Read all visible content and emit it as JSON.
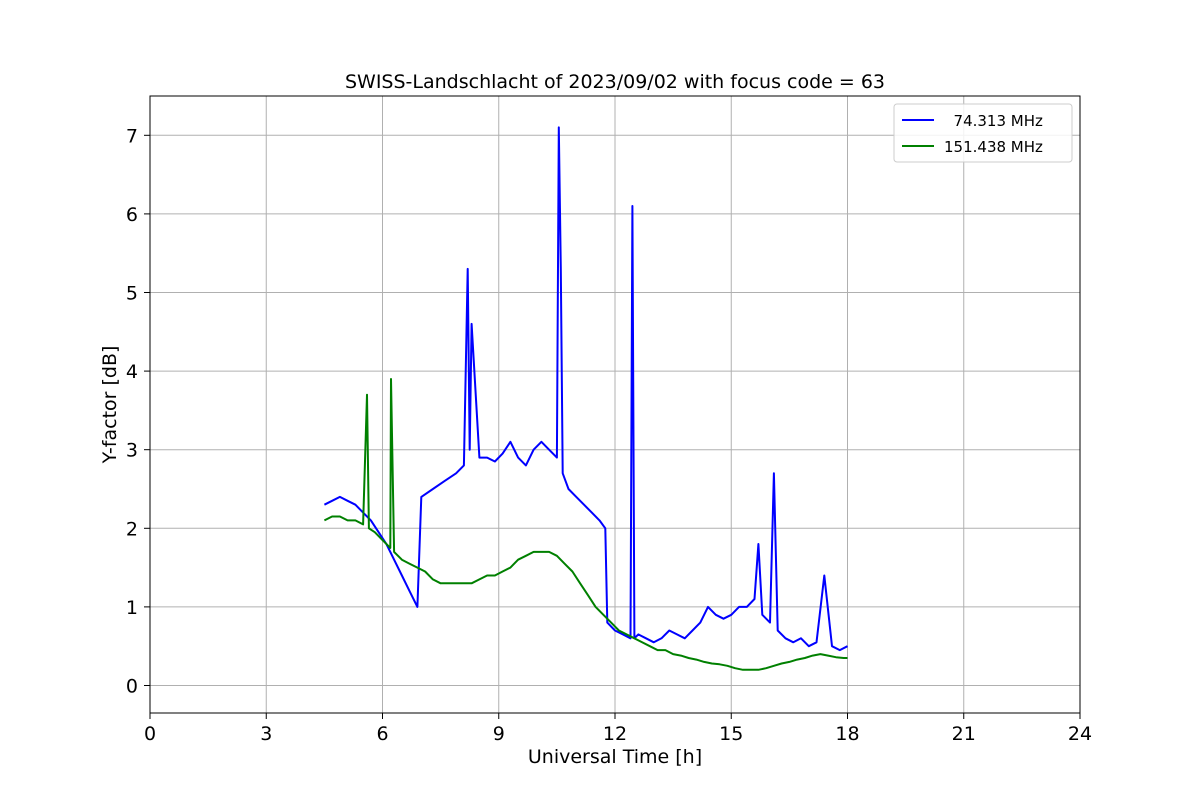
{
  "chart_data": {
    "type": "line",
    "title": "SWISS-Landschlacht of 2023/09/02 with focus code = 63",
    "xlabel": "Universal Time [h]",
    "ylabel": "Y-factor [dB]",
    "xlim": [
      0,
      24
    ],
    "ylim": [
      -0.35,
      7.5
    ],
    "xticks": [
      0,
      3,
      6,
      9,
      12,
      15,
      18,
      21,
      24
    ],
    "yticks": [
      0,
      1,
      2,
      3,
      4,
      5,
      6,
      7
    ],
    "grid": true,
    "legend_position": "top-right",
    "series": [
      {
        "name": "  74.313 MHz",
        "color": "#0000ff",
        "x": [
          4.5,
          4.7,
          4.9,
          5.1,
          5.3,
          5.5,
          5.7,
          5.9,
          6.1,
          6.3,
          6.5,
          6.7,
          6.9,
          7.0,
          7.3,
          7.6,
          7.9,
          8.1,
          8.2,
          8.25,
          8.3,
          8.5,
          8.7,
          8.9,
          9.1,
          9.3,
          9.5,
          9.7,
          9.9,
          10.1,
          10.3,
          10.5,
          10.55,
          10.6,
          10.65,
          10.8,
          11.0,
          11.2,
          11.4,
          11.6,
          11.75,
          11.8,
          12.0,
          12.2,
          12.4,
          12.45,
          12.5,
          12.6,
          12.8,
          13.0,
          13.2,
          13.4,
          13.6,
          13.8,
          14.0,
          14.2,
          14.4,
          14.6,
          14.8,
          15.0,
          15.2,
          15.4,
          15.6,
          15.7,
          15.8,
          16.0,
          16.1,
          16.2,
          16.4,
          16.6,
          16.8,
          17.0,
          17.2,
          17.4,
          17.6,
          17.8,
          18.0
        ],
        "y": [
          2.3,
          2.35,
          2.4,
          2.35,
          2.3,
          2.2,
          2.1,
          1.95,
          1.8,
          1.6,
          1.4,
          1.2,
          1.0,
          2.4,
          2.5,
          2.6,
          2.7,
          2.8,
          5.3,
          3.0,
          4.6,
          2.9,
          2.9,
          2.85,
          2.95,
          3.1,
          2.9,
          2.8,
          3.0,
          3.1,
          3.0,
          2.9,
          7.1,
          5.3,
          2.7,
          2.5,
          2.4,
          2.3,
          2.2,
          2.1,
          2.0,
          0.8,
          0.7,
          0.65,
          0.6,
          6.1,
          0.6,
          0.65,
          0.6,
          0.55,
          0.6,
          0.7,
          0.65,
          0.6,
          0.7,
          0.8,
          1.0,
          0.9,
          0.85,
          0.9,
          1.0,
          1.0,
          1.1,
          1.8,
          0.9,
          0.8,
          2.7,
          0.7,
          0.6,
          0.55,
          0.6,
          0.5,
          0.55,
          1.4,
          0.5,
          0.45,
          0.5
        ]
      },
      {
        "name": "151.438 MHz",
        "color": "#008000",
        "x": [
          4.5,
          4.7,
          4.9,
          5.1,
          5.3,
          5.5,
          5.6,
          5.65,
          5.8,
          6.0,
          6.2,
          6.22,
          6.3,
          6.5,
          6.7,
          6.9,
          7.1,
          7.3,
          7.5,
          7.7,
          7.9,
          8.1,
          8.3,
          8.5,
          8.7,
          8.9,
          9.1,
          9.3,
          9.5,
          9.7,
          9.9,
          10.1,
          10.3,
          10.5,
          10.7,
          10.9,
          11.1,
          11.3,
          11.5,
          11.7,
          11.9,
          12.1,
          12.3,
          12.5,
          12.7,
          12.9,
          13.1,
          13.3,
          13.5,
          13.7,
          13.9,
          14.1,
          14.3,
          14.5,
          14.7,
          14.9,
          15.1,
          15.3,
          15.5,
          15.7,
          15.9,
          16.1,
          16.3,
          16.5,
          16.7,
          16.9,
          17.1,
          17.3,
          17.5,
          17.7,
          17.9,
          18.0
        ],
        "y": [
          2.1,
          2.15,
          2.15,
          2.1,
          2.1,
          2.05,
          3.7,
          2.0,
          1.95,
          1.85,
          1.75,
          3.9,
          1.7,
          1.6,
          1.55,
          1.5,
          1.45,
          1.35,
          1.3,
          1.3,
          1.3,
          1.3,
          1.3,
          1.35,
          1.4,
          1.4,
          1.45,
          1.5,
          1.6,
          1.65,
          1.7,
          1.7,
          1.7,
          1.65,
          1.55,
          1.45,
          1.3,
          1.15,
          1.0,
          0.9,
          0.8,
          0.7,
          0.65,
          0.6,
          0.55,
          0.5,
          0.45,
          0.45,
          0.4,
          0.38,
          0.35,
          0.33,
          0.3,
          0.28,
          0.27,
          0.25,
          0.22,
          0.2,
          0.2,
          0.2,
          0.22,
          0.25,
          0.28,
          0.3,
          0.33,
          0.35,
          0.38,
          0.4,
          0.38,
          0.36,
          0.35,
          0.35
        ]
      }
    ]
  }
}
